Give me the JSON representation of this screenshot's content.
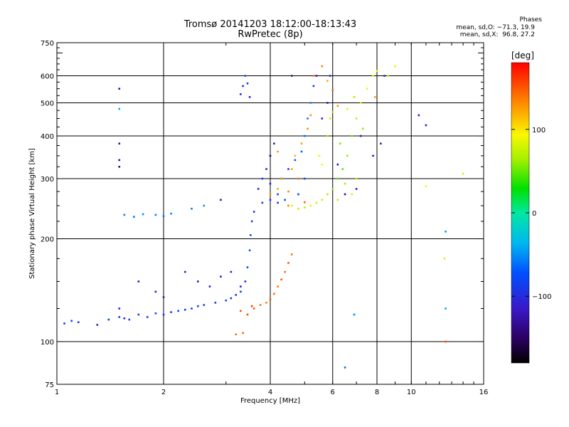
{
  "chart_data": {
    "type": "scatter",
    "title": "Tromsø 20141203 18:12:00-18:13:43",
    "subtitle": "RwPretec (8p)",
    "xlabel": "Frequency [MHz]",
    "ylabel": "Stationary phase Virtual Height [km]",
    "x_scale": "log",
    "y_scale": "log",
    "xlim": [
      1,
      16
    ],
    "ylim": [
      75,
      750
    ],
    "x_ticks": [
      1,
      2,
      4,
      6,
      8,
      10,
      16
    ],
    "x_tick_labels": [
      "1",
      "2",
      "4",
      "6",
      "8",
      "10",
      "16"
    ],
    "x_gridlines": [
      2,
      4,
      6,
      8,
      10
    ],
    "y_ticks": [
      75,
      100,
      200,
      300,
      400,
      500,
      600,
      750
    ],
    "y_tick_labels": [
      "75",
      "100",
      "200",
      "300",
      "400",
      "500",
      "600",
      "750"
    ],
    "y_gridlines": [
      100,
      200,
      300,
      400,
      500,
      600
    ],
    "grid": true,
    "phases": {
      "title": "Phases",
      "o_line": "mean, sd,O: −71.3, 19.9",
      "x_line": "mean, sd,X:  96.8, 27.2"
    },
    "colorbar": {
      "label": "[deg]",
      "range": [
        -180,
        180
      ],
      "ticks": [
        100,
        0,
        -100
      ],
      "tick_labels": [
        "100",
        "0",
        "−100"
      ],
      "colormap": "rainbow"
    },
    "series": [
      {
        "points": [
          [
            1.05,
            113,
            -85
          ],
          [
            1.1,
            115,
            -80
          ],
          [
            1.15,
            114,
            -88
          ],
          [
            1.3,
            112,
            -115
          ],
          [
            1.4,
            116,
            -82
          ],
          [
            1.5,
            118,
            -86
          ],
          [
            1.55,
            117,
            -98
          ],
          [
            1.6,
            116,
            -80
          ],
          [
            1.7,
            120,
            -84
          ],
          [
            1.8,
            118,
            -92
          ],
          [
            1.9,
            121,
            -78
          ],
          [
            2.0,
            120,
            -86
          ],
          [
            2.1,
            122,
            -96
          ],
          [
            2.2,
            123,
            -82
          ],
          [
            2.3,
            124,
            -88
          ],
          [
            2.4,
            125,
            -80
          ],
          [
            2.5,
            127,
            -90
          ],
          [
            2.6,
            128,
            -84
          ],
          [
            2.8,
            130,
            -92
          ],
          [
            3.0,
            132,
            -80
          ],
          [
            3.1,
            134,
            -86
          ],
          [
            3.2,
            137,
            -94
          ],
          [
            3.3,
            140,
            -82
          ],
          [
            3.4,
            150,
            -90
          ],
          [
            3.45,
            165,
            -75
          ],
          [
            3.5,
            185,
            -70
          ],
          [
            3.52,
            205,
            -80
          ],
          [
            3.55,
            225,
            -85
          ],
          [
            3.6,
            240,
            -95
          ],
          [
            1.5,
            125,
            -110
          ],
          [
            1.7,
            150,
            -118
          ],
          [
            1.9,
            140,
            -112
          ],
          [
            2.0,
            135,
            -122
          ],
          [
            2.3,
            160,
            -115
          ],
          [
            2.5,
            150,
            -120
          ],
          [
            2.7,
            145,
            -112
          ],
          [
            2.9,
            155,
            -118
          ],
          [
            3.1,
            160,
            -110
          ],
          [
            3.3,
            145,
            -115
          ],
          [
            1.5,
            480,
            -40
          ],
          [
            1.5,
            550,
            -130
          ],
          [
            1.5,
            380,
            -130
          ],
          [
            1.5,
            340,
            -130
          ],
          [
            1.5,
            325,
            -140
          ],
          [
            1.55,
            235,
            -55
          ],
          [
            1.65,
            232,
            -60
          ],
          [
            1.75,
            236,
            -50
          ],
          [
            1.9,
            235,
            -55
          ],
          [
            2.0,
            233,
            -60
          ],
          [
            2.1,
            237,
            -52
          ],
          [
            2.4,
            245,
            -55
          ],
          [
            2.6,
            250,
            -50
          ],
          [
            2.9,
            260,
            -125
          ],
          [
            3.3,
            530,
            -100
          ],
          [
            3.35,
            560,
            -95
          ],
          [
            3.4,
            600,
            -70
          ],
          [
            3.5,
            520,
            -110
          ],
          [
            3.45,
            570,
            -90
          ],
          [
            3.7,
            280,
            -100
          ],
          [
            3.8,
            300,
            -95
          ],
          [
            4.0,
            290,
            -110
          ],
          [
            4.2,
            270,
            -80
          ],
          [
            4.3,
            300,
            -90
          ],
          [
            4.5,
            320,
            -100
          ],
          [
            4.7,
            340,
            -70
          ],
          [
            4.9,
            360,
            -65
          ],
          [
            5.0,
            400,
            -60
          ],
          [
            5.1,
            450,
            -55
          ],
          [
            5.2,
            500,
            -50
          ],
          [
            5.3,
            560,
            -80
          ],
          [
            5.0,
            300,
            -85
          ],
          [
            4.8,
            270,
            -78
          ],
          [
            4.4,
            260,
            -72
          ],
          [
            4.2,
            255,
            -100
          ],
          [
            4.0,
            260,
            -88
          ],
          [
            3.8,
            255,
            -95
          ],
          [
            5.4,
            600,
            -120
          ],
          [
            4.6,
            600,
            -125
          ],
          [
            5.6,
            450,
            -115
          ],
          [
            5.8,
            500,
            -120
          ],
          [
            6.2,
            330,
            -125
          ],
          [
            6.5,
            270,
            -130
          ],
          [
            7.0,
            280,
            -125
          ],
          [
            7.2,
            400,
            -120
          ],
          [
            7.8,
            350,
            -125
          ],
          [
            8.2,
            380,
            -120
          ],
          [
            8.4,
            600,
            -110
          ],
          [
            10.5,
            460,
            -120
          ],
          [
            11.0,
            430,
            -115
          ],
          [
            12.5,
            210,
            -45
          ],
          [
            12.5,
            125,
            -40
          ],
          [
            6.5,
            84,
            -60
          ],
          [
            6.9,
            120,
            -50
          ],
          [
            4.0,
            350,
            -140
          ],
          [
            4.1,
            380,
            -120
          ],
          [
            3.9,
            320,
            -110
          ],
          [
            5.9,
            600,
            -90
          ]
        ]
      },
      {
        "points": [
          [
            3.2,
            105,
            140
          ],
          [
            3.35,
            106,
            145
          ],
          [
            3.45,
            120,
            155
          ],
          [
            3.6,
            125,
            150
          ],
          [
            3.75,
            128,
            140
          ],
          [
            3.9,
            130,
            135
          ],
          [
            4.0,
            133,
            150
          ],
          [
            4.1,
            138,
            145
          ],
          [
            4.2,
            145,
            140
          ],
          [
            4.3,
            152,
            150
          ],
          [
            4.4,
            160,
            145
          ],
          [
            4.5,
            170,
            150
          ],
          [
            4.6,
            180,
            140
          ],
          [
            3.55,
            127,
            160
          ],
          [
            3.3,
            123,
            155
          ],
          [
            4.0,
            270,
            130
          ],
          [
            4.2,
            280,
            120
          ],
          [
            4.3,
            300,
            125
          ],
          [
            4.5,
            275,
            135
          ],
          [
            4.6,
            320,
            120
          ],
          [
            4.7,
            350,
            115
          ],
          [
            4.9,
            380,
            125
          ],
          [
            5.1,
            420,
            130
          ],
          [
            5.3,
            600,
            140
          ],
          [
            5.6,
            640,
            135
          ],
          [
            4.2,
            360,
            125
          ],
          [
            5.8,
            580,
            120
          ],
          [
            6.0,
            545,
            145
          ],
          [
            6.2,
            490,
            130
          ],
          [
            7.9,
            520,
            125
          ],
          [
            4.8,
            300,
            140
          ],
          [
            4.5,
            250,
            135
          ],
          [
            5.0,
            256,
            145
          ],
          [
            5.2,
            460,
            130
          ],
          [
            12.5,
            100,
            155
          ],
          [
            12.4,
            175,
            100
          ],
          [
            6.0,
            470,
            110
          ]
        ]
      },
      {
        "points": [
          [
            4.6,
            250,
            80
          ],
          [
            4.8,
            245,
            75
          ],
          [
            5.0,
            247,
            70
          ],
          [
            5.2,
            250,
            85
          ],
          [
            5.4,
            255,
            80
          ],
          [
            5.6,
            260,
            75
          ],
          [
            5.8,
            270,
            70
          ],
          [
            6.0,
            280,
            60
          ],
          [
            6.2,
            300,
            50
          ],
          [
            6.4,
            320,
            45
          ],
          [
            6.6,
            350,
            60
          ],
          [
            6.8,
            400,
            55
          ],
          [
            7.0,
            450,
            70
          ],
          [
            7.2,
            500,
            80
          ],
          [
            7.5,
            550,
            90
          ],
          [
            7.8,
            600,
            85
          ],
          [
            8.0,
            620,
            95
          ],
          [
            8.6,
            600,
            70
          ],
          [
            9.0,
            640,
            90
          ],
          [
            6.5,
            290,
            65
          ],
          [
            6.2,
            260,
            75
          ],
          [
            6.8,
            270,
            80
          ],
          [
            7.0,
            300,
            70
          ],
          [
            5.5,
            350,
            90
          ],
          [
            5.8,
            400,
            60
          ],
          [
            5.9,
            450,
            75
          ],
          [
            6.3,
            380,
            55
          ],
          [
            6.6,
            480,
            85
          ],
          [
            6.9,
            520,
            65
          ],
          [
            14.0,
            310,
            80
          ],
          [
            11.0,
            285,
            95
          ],
          [
            5.6,
            330,
            95
          ],
          [
            7.3,
            420,
            60
          ]
        ]
      }
    ]
  }
}
